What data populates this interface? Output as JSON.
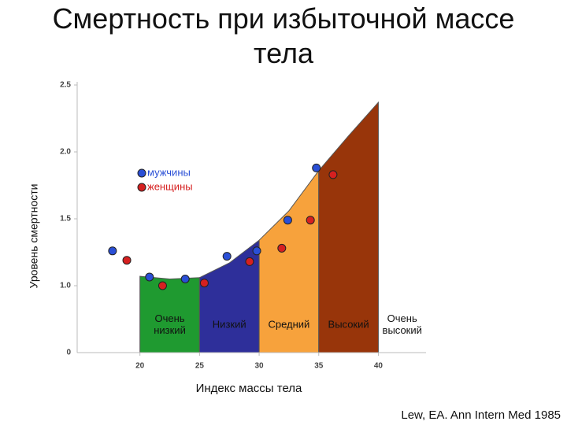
{
  "chart_data": {
    "type": "scatter",
    "title": "Смертность при избыточной массе тела",
    "source": "Lew, EA. Ann Intern Med 1985",
    "x_label": "Индекс массы тела",
    "y_label": "Уровень смертности",
    "xlim": [
      15,
      44
    ],
    "xticks": [
      20,
      25,
      30,
      35,
      40
    ],
    "ylim": [
      0.5,
      2.5
    ],
    "yticks": [
      {
        "value": 1,
        "label": "1.0"
      },
      {
        "value": 1.5,
        "label": "1.5"
      },
      {
        "value": 2,
        "label": "2.0"
      },
      {
        "value": 2.5,
        "label": "2.5"
      }
    ],
    "y_origin_label": "0",
    "legend": "upper left",
    "series": [
      {
        "name": "мужчины",
        "color": "#2a4fd6",
        "x": [
          17.7,
          20.8,
          23.8,
          27.3,
          29.8,
          32.4,
          34.8
        ],
        "values": [
          1.26,
          1.065,
          1.05,
          1.22,
          1.26,
          1.49,
          1.88
        ]
      },
      {
        "name": "женщины",
        "color": "#d62020",
        "x": [
          18.9,
          21.9,
          25.4,
          29.2,
          31.9,
          34.3,
          36.2
        ],
        "values": [
          1.19,
          1.0,
          1.02,
          1.18,
          1.28,
          1.49,
          1.83
        ]
      }
    ],
    "area_curve": {
      "x": [
        20,
        22.5,
        25,
        27.5,
        30,
        32.5,
        35,
        37.5,
        40
      ],
      "values": [
        1.07,
        1.05,
        1.06,
        1.17,
        1.34,
        1.56,
        1.86,
        2.12,
        2.37
      ]
    },
    "zones": [
      {
        "name": "Очень низкий",
        "color": "#1f9a30",
        "range": [
          20,
          25
        ]
      },
      {
        "name": "Низкий",
        "color": "#2e2f9a",
        "range": [
          25,
          30
        ]
      },
      {
        "name": "Средний",
        "color": "#f7a23c",
        "range": [
          30,
          35
        ]
      },
      {
        "name": "Высокий",
        "color": "#98350a",
        "range": [
          35,
          40
        ]
      },
      {
        "name": "Очень высокий",
        "range": [
          40,
          44
        ]
      }
    ]
  }
}
